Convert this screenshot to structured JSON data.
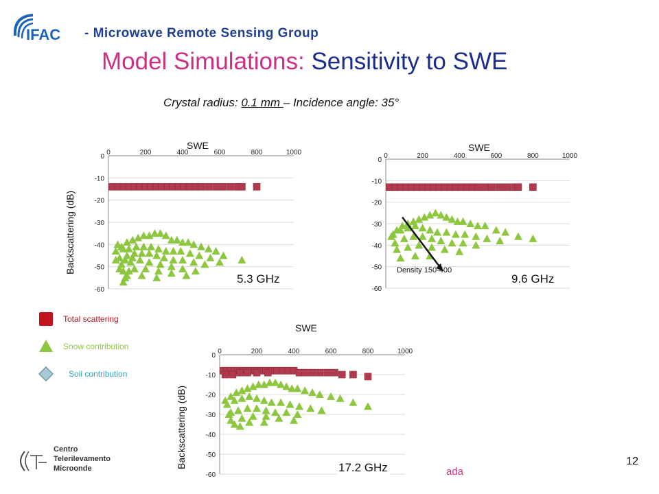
{
  "header": {
    "group_prefix": "- ",
    "group_name": "Microwave Remote Sensing Group",
    "logo_text": "IFAC",
    "title_part1": "Model Simulations:",
    "title_part2": "Sensitivity to SWE",
    "subtitle_pre": "Crystal radius: ",
    "subtitle_underlined": "0.1 mm ",
    "subtitle_post": "– Incidence angle: 35°"
  },
  "legend": {
    "items": [
      {
        "label": "Total scattering",
        "color": "#c0141e",
        "shape": "square"
      },
      {
        "label": "Snow contribution",
        "color": "#8dc63f",
        "shape": "triangle"
      },
      {
        "label": "Soil contribution",
        "color": "#7fa8b8",
        "shape": "diamond"
      }
    ]
  },
  "footer": {
    "logo_lines": [
      "Centro",
      "Telerilevamento",
      "Microonde"
    ],
    "page_number": "12",
    "fragment": "ada"
  },
  "colors": {
    "total": "#b23a4e",
    "snow": "#8dc63f",
    "title_pink": "#cc2f86",
    "title_blue": "#1c2e8c"
  },
  "chart_data": [
    {
      "type": "scatter",
      "frequency": "5.3 GHz",
      "xlabel": "SWE",
      "ylabel": "Backscattering (dB)",
      "xlim": [
        0,
        1000
      ],
      "ylim": [
        -60,
        0
      ],
      "xticks": [
        0,
        200,
        400,
        600,
        800,
        1000
      ],
      "yticks": [
        0,
        -10,
        -20,
        -30,
        -40,
        -50,
        -60
      ],
      "grid": true,
      "series": [
        {
          "name": "Total scattering",
          "marker": "square",
          "x": [
            20,
            50,
            80,
            110,
            140,
            170,
            200,
            230,
            260,
            290,
            320,
            350,
            380,
            410,
            440,
            470,
            500,
            540,
            580,
            620,
            660,
            700,
            720,
            800
          ],
          "y": [
            -14,
            -14,
            -14,
            -14,
            -14,
            -14,
            -14,
            -14,
            -14,
            -14,
            -14,
            -14,
            -14,
            -14,
            -14,
            -14,
            -14,
            -14,
            -14,
            -14,
            -14,
            -14,
            -14,
            -14
          ]
        },
        {
          "name": "Snow contribution",
          "marker": "triangle",
          "x": [
            40,
            70,
            100,
            130,
            160,
            190,
            220,
            250,
            280,
            310,
            340,
            370,
            400,
            430,
            460,
            500,
            540,
            580,
            620,
            720,
            50,
            80,
            110,
            150,
            190,
            230,
            270,
            310,
            350,
            390,
            440,
            490,
            550,
            600,
            60,
            100,
            140,
            180,
            220,
            260,
            300,
            350,
            400,
            460,
            520,
            70,
            120,
            170,
            220,
            280,
            340,
            400,
            470,
            80,
            140,
            200,
            270,
            340,
            420,
            100,
            180,
            260,
            40,
            90,
            130,
            60,
            110,
            80,
            90
          ],
          "y": [
            -43,
            -41,
            -39,
            -38,
            -37,
            -36,
            -36,
            -35,
            -35,
            -36,
            -38,
            -38,
            -39,
            -39,
            -40,
            -41,
            -42,
            -43,
            -45,
            -47,
            -40,
            -42,
            -42,
            -41,
            -41,
            -41,
            -42,
            -43,
            -43,
            -43,
            -44,
            -45,
            -46,
            -48,
            -46,
            -45,
            -44,
            -44,
            -44,
            -45,
            -46,
            -47,
            -47,
            -48,
            -49,
            -49,
            -48,
            -47,
            -48,
            -49,
            -50,
            -51,
            -52,
            -52,
            -51,
            -51,
            -52,
            -53,
            -54,
            -54,
            -54,
            -55,
            -47,
            -47,
            -46,
            -51,
            -52,
            -57,
            -55
          ]
        }
      ]
    },
    {
      "type": "scatter",
      "frequency": "9.6 GHz",
      "xlabel": "SWE",
      "ylabel": "",
      "xlim": [
        0,
        1000
      ],
      "ylim": [
        -60,
        0
      ],
      "xticks": [
        0,
        200,
        400,
        600,
        800,
        1000
      ],
      "yticks": [
        0,
        -10,
        -20,
        -30,
        -40,
        -50,
        -60
      ],
      "grid": true,
      "annotation": "Density 150-400",
      "series": [
        {
          "name": "Total scattering",
          "marker": "square",
          "x": [
            20,
            50,
            80,
            110,
            140,
            170,
            200,
            230,
            260,
            290,
            320,
            350,
            380,
            410,
            440,
            470,
            500,
            540,
            580,
            620,
            660,
            700,
            720,
            800
          ],
          "y": [
            -13,
            -13,
            -13,
            -13,
            -13,
            -13,
            -13,
            -13,
            -13,
            -13,
            -13,
            -13,
            -13,
            -13,
            -13,
            -13,
            -13,
            -13,
            -13,
            -13,
            -13,
            -13,
            -13,
            -13
          ]
        },
        {
          "name": "Snow contribution",
          "marker": "triangle",
          "x": [
            30,
            60,
            90,
            120,
            150,
            180,
            210,
            240,
            270,
            300,
            330,
            360,
            390,
            420,
            460,
            500,
            540,
            600,
            650,
            720,
            800,
            40,
            80,
            120,
            160,
            200,
            240,
            280,
            330,
            380,
            430,
            490,
            550,
            620,
            50,
            100,
            150,
            200,
            250,
            300,
            360,
            420,
            490,
            60,
            120,
            180,
            250,
            320,
            400,
            80,
            160,
            240
          ],
          "y": [
            -36,
            -33,
            -31,
            -30,
            -29,
            -28,
            -27,
            -26,
            -25,
            -26,
            -27,
            -28,
            -29,
            -29,
            -30,
            -31,
            -31,
            -33,
            -34,
            -36,
            -37,
            -35,
            -33,
            -32,
            -31,
            -32,
            -33,
            -34,
            -34,
            -35,
            -35,
            -36,
            -37,
            -38,
            -39,
            -37,
            -36,
            -36,
            -37,
            -38,
            -39,
            -39,
            -40,
            -42,
            -41,
            -40,
            -41,
            -42,
            -43,
            -46,
            -45,
            -45
          ]
        }
      ]
    },
    {
      "type": "scatter",
      "frequency": "17.2 GHz",
      "xlabel": "SWE",
      "ylabel": "Backscattering (dB)",
      "xlim": [
        0,
        1000
      ],
      "ylim": [
        -60,
        0
      ],
      "xticks": [
        0,
        200,
        400,
        600,
        800,
        1000
      ],
      "yticks": [
        0,
        -10,
        -20,
        -30,
        -40,
        -50,
        -60
      ],
      "grid": true,
      "series": [
        {
          "name": "Total scattering",
          "marker": "square",
          "x": [
            20,
            40,
            60,
            80,
            100,
            130,
            160,
            190,
            220,
            250,
            280,
            310,
            340,
            370,
            400,
            430,
            460,
            500,
            540,
            580,
            620,
            660,
            720,
            800,
            30,
            70,
            110,
            150,
            200,
            260
          ],
          "y": [
            -8,
            -8,
            -8,
            -8,
            -8,
            -8,
            -8,
            -8,
            -8,
            -8,
            -8,
            -8,
            -8,
            -8,
            -8,
            -9,
            -9,
            -9,
            -9,
            -9,
            -9,
            -10,
            -10,
            -11,
            -10,
            -10,
            -9,
            -9,
            -9,
            -9
          ]
        },
        {
          "name": "Snow contribution",
          "marker": "triangle",
          "x": [
            30,
            60,
            90,
            120,
            150,
            180,
            210,
            240,
            270,
            300,
            330,
            360,
            390,
            420,
            460,
            500,
            540,
            600,
            650,
            720,
            800,
            40,
            80,
            120,
            160,
            200,
            240,
            280,
            330,
            380,
            430,
            490,
            550,
            50,
            100,
            150,
            200,
            250,
            300,
            360,
            420,
            60,
            120,
            180,
            250,
            320,
            400,
            80,
            160,
            240,
            60,
            110
          ],
          "y": [
            -23,
            -21,
            -19,
            -18,
            -17,
            -16,
            -15,
            -15,
            -14,
            -14,
            -15,
            -16,
            -17,
            -17,
            -18,
            -19,
            -20,
            -21,
            -22,
            -24,
            -26,
            -25,
            -23,
            -22,
            -21,
            -22,
            -23,
            -24,
            -24,
            -25,
            -26,
            -27,
            -28,
            -30,
            -28,
            -27,
            -27,
            -28,
            -29,
            -29,
            -30,
            -33,
            -32,
            -31,
            -31,
            -32,
            -33,
            -35,
            -34,
            -34,
            -29,
            -36
          ]
        }
      ]
    }
  ]
}
